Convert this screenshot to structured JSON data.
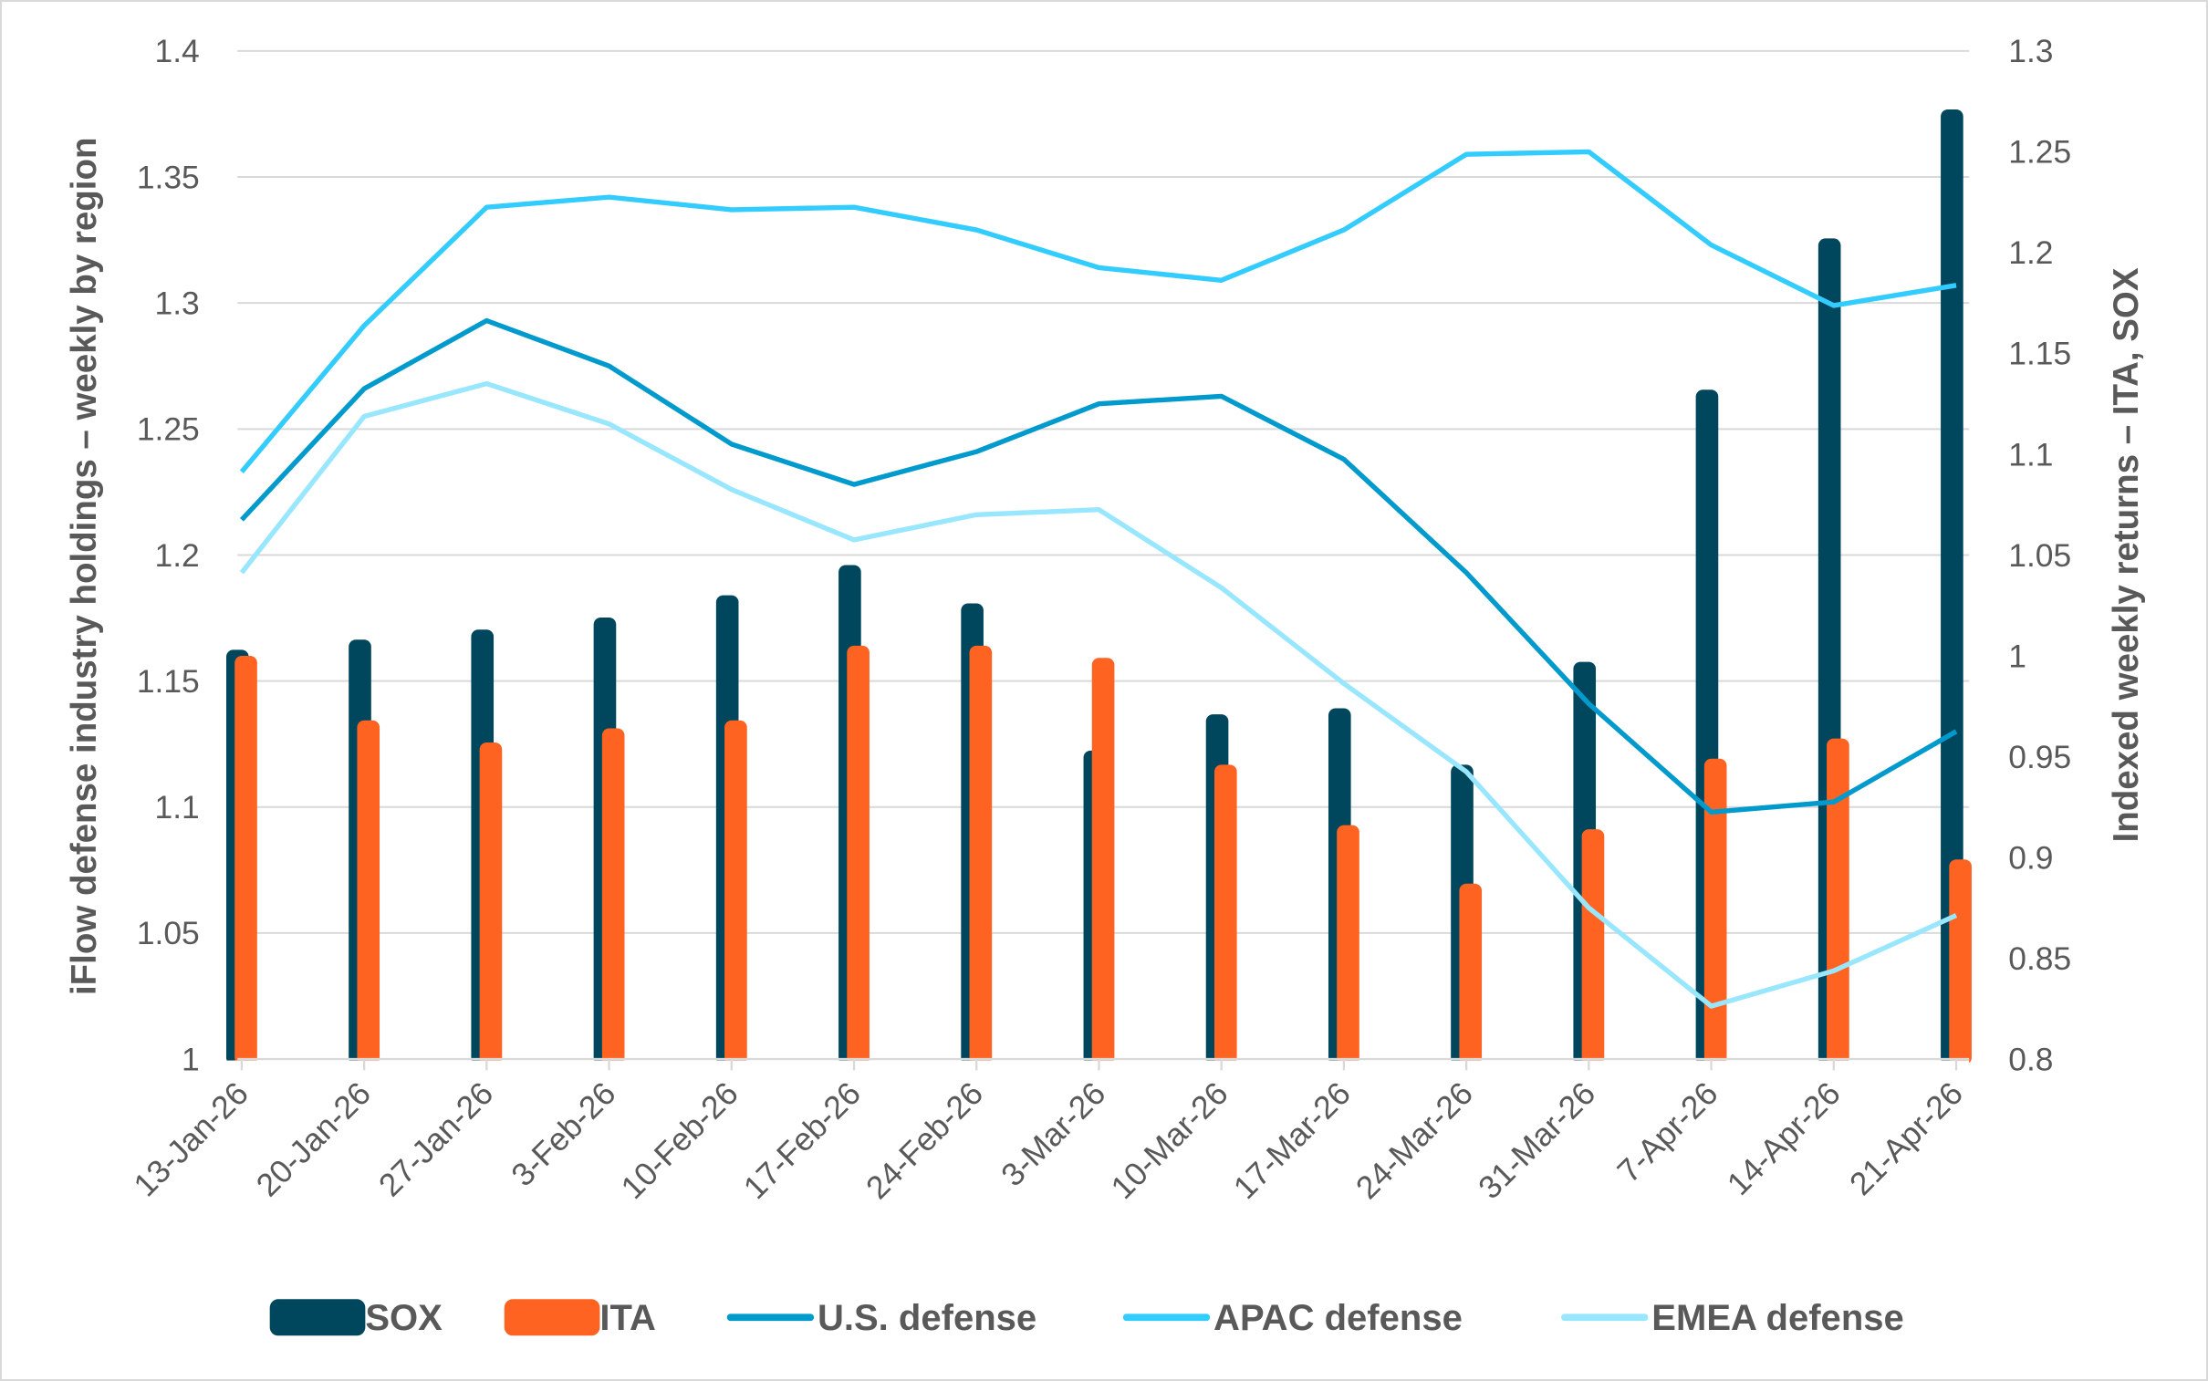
{
  "chart_data": {
    "type": "bar+line",
    "categories": [
      "13-Jan-26",
      "20-Jan-26",
      "27-Jan-26",
      "3-Feb-26",
      "10-Feb-26",
      "17-Feb-26",
      "24-Feb-26",
      "3-Mar-26",
      "10-Mar-26",
      "17-Mar-26",
      "24-Mar-26",
      "31-Mar-26",
      "7-Apr-26",
      "14-Apr-26",
      "21-Apr-26"
    ],
    "y_left": {
      "label": "iFlow defense industry holdings – weekly by region",
      "lim": [
        1,
        1.4
      ],
      "ticks": [
        "1",
        "1.05",
        "1.1",
        "1.15",
        "1.2",
        "1.25",
        "1.3",
        "1.35",
        "1.4"
      ]
    },
    "y_right": {
      "label": "Indexed weekly returns – ITA, SOX",
      "lim": [
        0.8,
        1.3
      ],
      "ticks": [
        "0.8",
        "0.85",
        "0.9",
        "0.95",
        "1",
        "1.05",
        "1.1",
        "1.15",
        "1.2",
        "1.25",
        "1.3"
      ]
    },
    "grid": true,
    "legend_position": "bottom",
    "series": [
      {
        "name": "SOX",
        "kind": "bar",
        "axis": "right",
        "color": "#00475E",
        "values": [
          1.003,
          1.008,
          1.013,
          1.019,
          1.03,
          1.045,
          1.026,
          0.953,
          0.971,
          0.974,
          0.946,
          0.997,
          1.132,
          1.207,
          1.271
        ]
      },
      {
        "name": "ITA",
        "kind": "bar",
        "axis": "right",
        "color": "#FF6321",
        "values": [
          1.0,
          0.968,
          0.957,
          0.964,
          0.968,
          1.005,
          1.005,
          0.999,
          0.946,
          0.916,
          0.887,
          0.914,
          0.949,
          0.959,
          0.899
        ]
      },
      {
        "name": "U.S. defense",
        "kind": "line",
        "axis": "left",
        "color": "#009ACD",
        "values": [
          1.214,
          1.266,
          1.293,
          1.275,
          1.244,
          1.228,
          1.241,
          1.26,
          1.263,
          1.238,
          1.193,
          1.141,
          1.098,
          1.102,
          1.13
        ]
      },
      {
        "name": "APAC defense",
        "kind": "line",
        "axis": "left",
        "color": "#33CCFF",
        "values": [
          1.233,
          1.291,
          1.338,
          1.342,
          1.337,
          1.338,
          1.329,
          1.314,
          1.309,
          1.329,
          1.359,
          1.36,
          1.323,
          1.299,
          1.307
        ]
      },
      {
        "name": "EMEA defense",
        "kind": "line",
        "axis": "left",
        "color": "#99E6FF",
        "values": [
          1.193,
          1.255,
          1.268,
          1.252,
          1.226,
          1.206,
          1.216,
          1.218,
          1.187,
          1.149,
          1.114,
          1.06,
          1.021,
          1.035,
          1.057
        ]
      }
    ]
  }
}
